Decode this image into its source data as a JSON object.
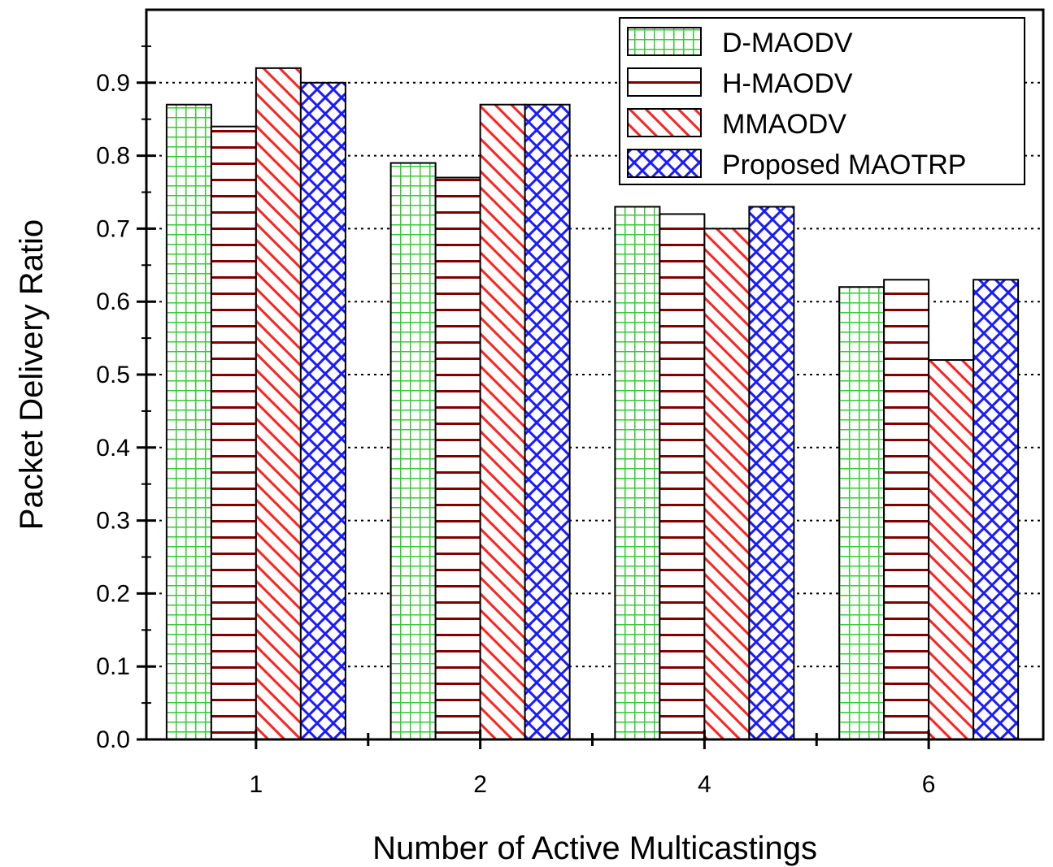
{
  "chart_data": {
    "type": "bar",
    "title": "",
    "xlabel": "Number of Active Multicastings",
    "ylabel": "Packet Delivery Ratio",
    "categories": [
      "1",
      "2",
      "4",
      "6"
    ],
    "ylim": [
      0.0,
      1.0
    ],
    "yticks": [
      "0.0",
      "0.1",
      "0.2",
      "0.3",
      "0.4",
      "0.5",
      "0.6",
      "0.7",
      "0.8",
      "0.9"
    ],
    "grid": "horizontal dotted",
    "legend_position": "top-right",
    "series": [
      {
        "name": "D-MAODV",
        "values": [
          0.87,
          0.79,
          0.73,
          0.62
        ],
        "color": "#33cc33",
        "pattern": "grid"
      },
      {
        "name": "H-MAODV",
        "values": [
          0.84,
          0.77,
          0.72,
          0.63
        ],
        "color": "#800000",
        "pattern": "horizontal"
      },
      {
        "name": "MMAODV",
        "values": [
          0.92,
          0.87,
          0.7,
          0.52
        ],
        "color": "#ff2020",
        "pattern": "diagonal"
      },
      {
        "name": "Proposed MAOTRP",
        "values": [
          0.9,
          0.87,
          0.73,
          0.63
        ],
        "color": "#1a1aff",
        "pattern": "crosshatch"
      }
    ]
  }
}
